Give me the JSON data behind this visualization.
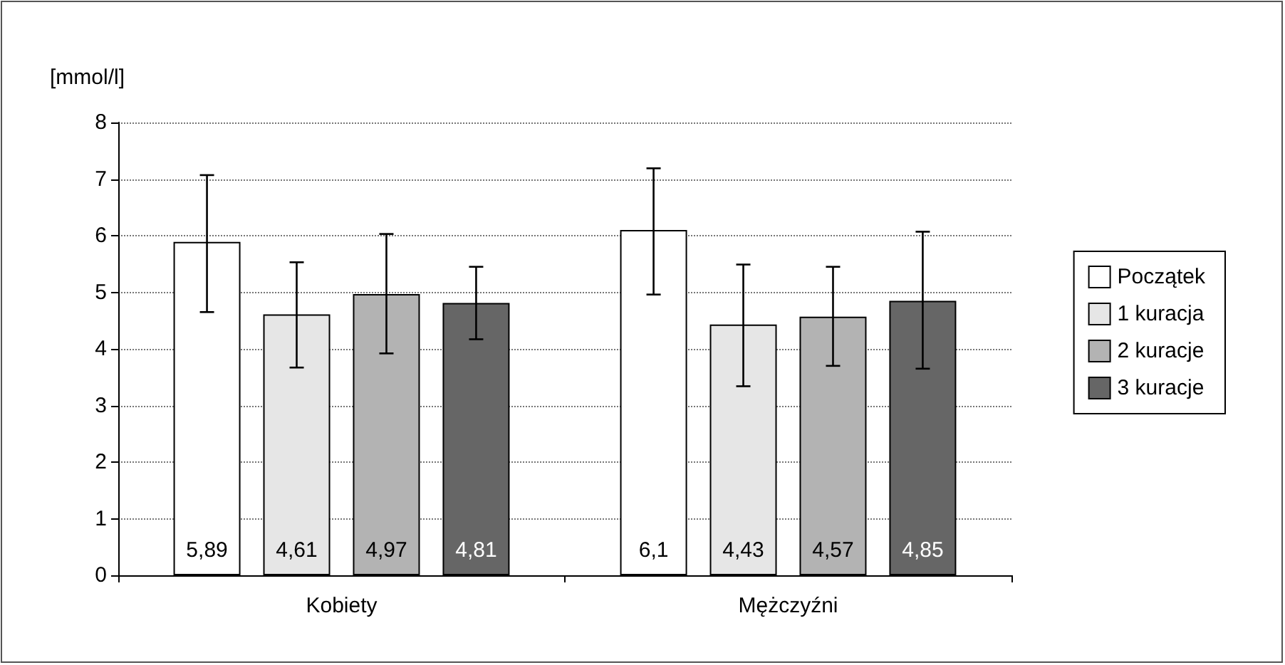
{
  "chart_data": {
    "type": "bar",
    "ylabel": "[mmol/l]",
    "categories": [
      "Kobiety",
      "Mężczyźni"
    ],
    "series": [
      {
        "name": "Początek",
        "color": "#ffffff",
        "values": [
          5.89,
          6.1
        ],
        "value_labels": [
          "5,89",
          "6,1"
        ],
        "errors": [
          [
            4.65,
            7.07
          ],
          [
            4.96,
            7.19
          ]
        ]
      },
      {
        "name": "1 kuracja",
        "color": "#e6e6e6",
        "values": [
          4.61,
          4.43
        ],
        "value_labels": [
          "4,61",
          "4,43"
        ],
        "errors": [
          [
            3.67,
            5.53
          ],
          [
            3.34,
            5.49
          ]
        ]
      },
      {
        "name": "2 kuracje",
        "color": "#b3b3b3",
        "values": [
          4.97,
          4.57
        ],
        "value_labels": [
          "4,97",
          "4,57"
        ],
        "errors": [
          [
            3.92,
            6.03
          ],
          [
            3.7,
            5.45
          ]
        ]
      },
      {
        "name": "3 kuracje",
        "color": "#666666",
        "values": [
          4.81,
          4.85
        ],
        "value_labels": [
          "4,81",
          "4,85"
        ],
        "errors": [
          [
            4.17,
            5.45
          ],
          [
            3.65,
            6.07
          ]
        ]
      }
    ],
    "ylim": [
      0,
      8
    ],
    "yticks": [
      0,
      1,
      2,
      3,
      4,
      5,
      6,
      7,
      8
    ],
    "grid": "y",
    "legend": "right"
  }
}
